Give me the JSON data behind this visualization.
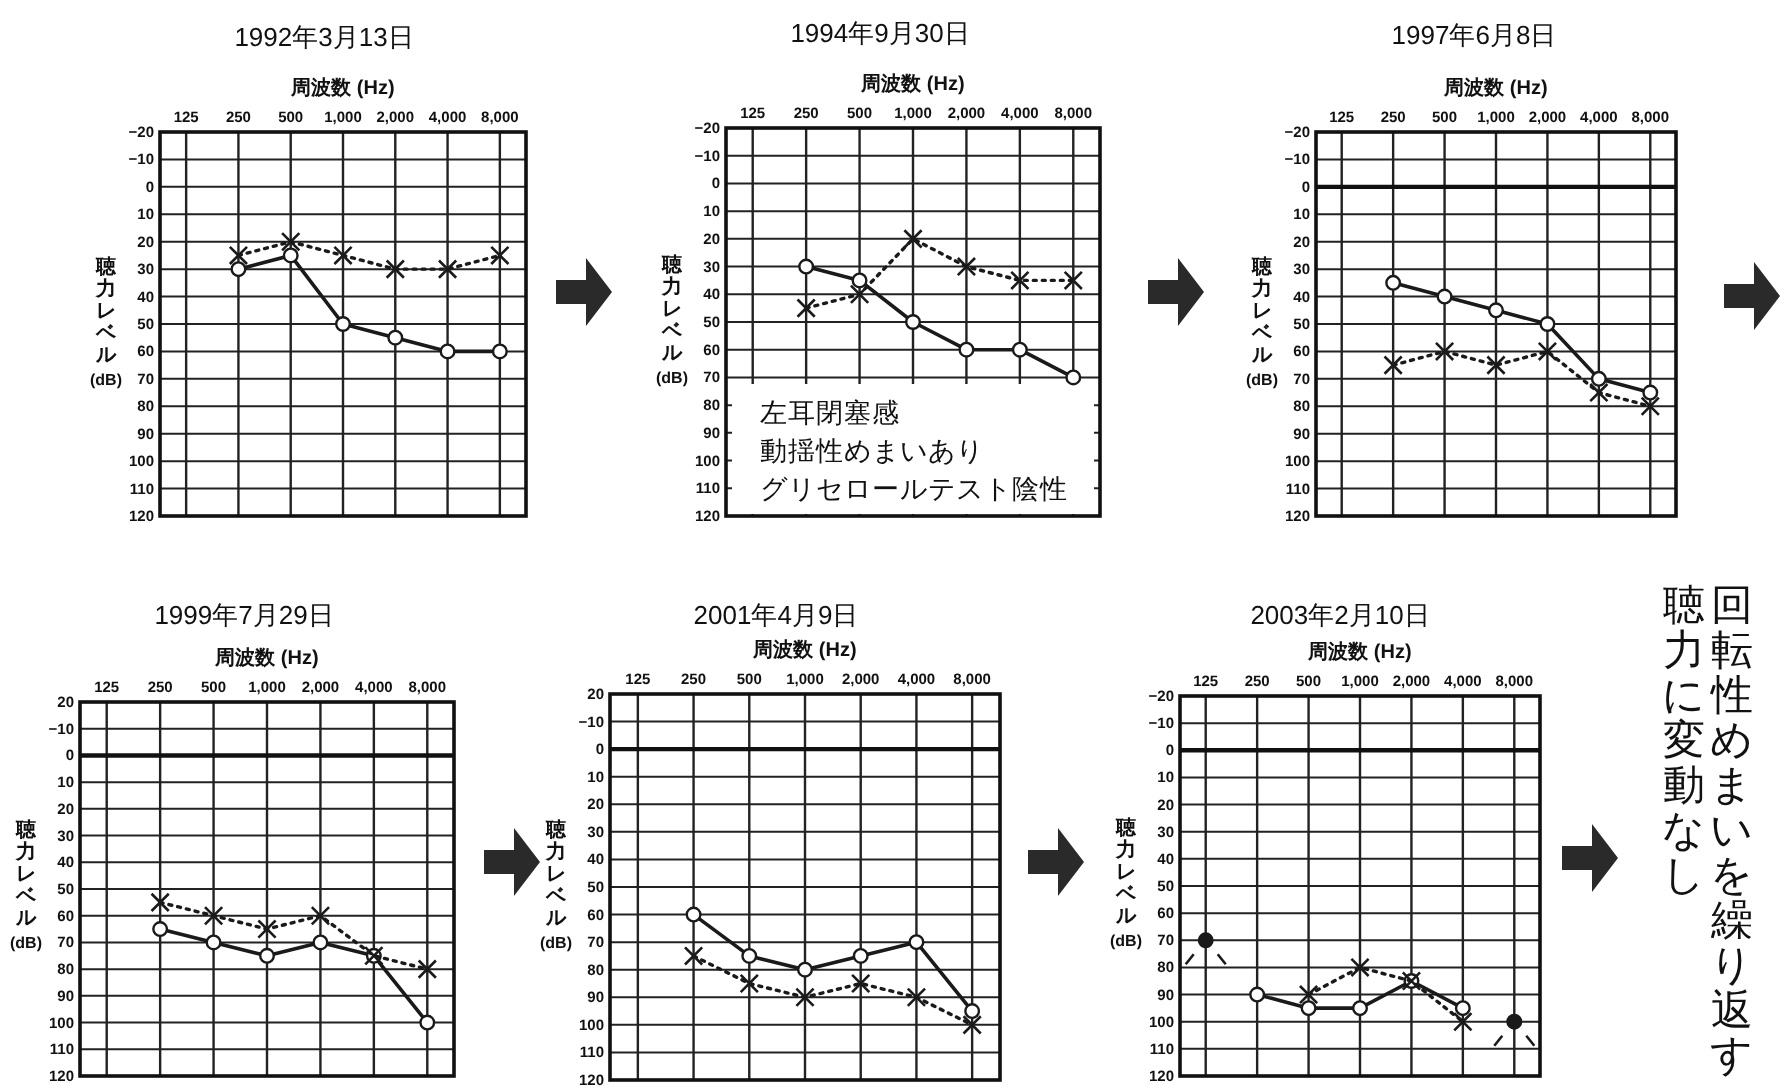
{
  "chart_data": [
    {
      "type": "line",
      "title": "1992年3月13日",
      "xlabel": "周波数 (Hz)",
      "ylabel": "聴力レベル (dB)",
      "categories": [
        "125",
        "250",
        "500",
        "1,000",
        "2,000",
        "4,000",
        "8,000"
      ],
      "ylim": [
        120,
        -20
      ],
      "yticks": [
        -20,
        -10,
        0,
        10,
        20,
        30,
        40,
        50,
        60,
        70,
        80,
        90,
        100,
        110,
        120
      ],
      "grid": true,
      "series": [
        {
          "color": "#1a1a1a",
          "marker": "circle",
          "line_style": "solid",
          "values": [
            null,
            30,
            25,
            50,
            55,
            60,
            60
          ]
        },
        {
          "color": "#1a1a1a",
          "marker": "cross",
          "line_style": "dotted",
          "values": [
            null,
            25,
            20,
            25,
            30,
            30,
            25
          ]
        }
      ]
    },
    {
      "type": "line",
      "title": "1994年9月30日",
      "xlabel": "周波数 (Hz)",
      "ylabel": "聴力レベル (dB)",
      "categories": [
        "125",
        "250",
        "500",
        "1,000",
        "2,000",
        "4,000",
        "8,000"
      ],
      "ylim": [
        120,
        -20
      ],
      "yticks": [
        -20,
        -10,
        0,
        10,
        20,
        30,
        40,
        50,
        60,
        70,
        80,
        90,
        100,
        110,
        120
      ],
      "grid": true,
      "series": [
        {
          "color": "#1a1a1a",
          "marker": "circle",
          "line_style": "solid",
          "values": [
            null,
            30,
            35,
            50,
            60,
            60,
            70
          ]
        },
        {
          "color": "#1a1a1a",
          "marker": "cross",
          "line_style": "dotted",
          "values": [
            null,
            45,
            40,
            20,
            30,
            35,
            35
          ]
        }
      ],
      "annotations": [
        "左耳閉塞感",
        "動揺性めまいあり",
        "グリセロールテスト陰性"
      ]
    },
    {
      "type": "line",
      "title": "1997年6月8日",
      "xlabel": "周波数 (Hz)",
      "ylabel": "聴力レベル (dB)",
      "categories": [
        "125",
        "250",
        "500",
        "1,000",
        "2,000",
        "4,000",
        "8,000"
      ],
      "ylim": [
        120,
        -20
      ],
      "yticks": [
        -20,
        -10,
        0,
        10,
        20,
        30,
        40,
        50,
        60,
        70,
        80,
        90,
        100,
        110,
        120
      ],
      "grid": true,
      "ref_lines": [
        {
          "axis": "y",
          "value": 0
        }
      ],
      "series": [
        {
          "color": "#1a1a1a",
          "marker": "circle",
          "line_style": "solid",
          "values": [
            null,
            35,
            40,
            45,
            50,
            70,
            75
          ]
        },
        {
          "color": "#1a1a1a",
          "marker": "cross",
          "line_style": "dotted",
          "values": [
            null,
            65,
            60,
            65,
            60,
            75,
            80
          ]
        }
      ]
    },
    {
      "type": "line",
      "title": "1999年7月29日",
      "xlabel": "周波数 (Hz)",
      "ylabel": "聴力レベル (dB)",
      "categories": [
        "125",
        "250",
        "500",
        "1,000",
        "2,000",
        "4,000",
        "8,000"
      ],
      "ylim": [
        120,
        -20
      ],
      "yticks": [
        {
          "value": -20,
          "label": "20"
        },
        -10,
        0,
        10,
        20,
        30,
        40,
        50,
        60,
        70,
        80,
        90,
        100,
        110,
        120
      ],
      "grid": true,
      "ref_lines": [
        {
          "axis": "y",
          "value": 0
        }
      ],
      "series": [
        {
          "color": "#1a1a1a",
          "marker": "circle",
          "line_style": "solid",
          "values": [
            null,
            65,
            70,
            75,
            70,
            75,
            100
          ]
        },
        {
          "color": "#1a1a1a",
          "marker": "cross",
          "line_style": "dotted",
          "values": [
            null,
            55,
            60,
            65,
            60,
            75,
            80
          ]
        }
      ]
    },
    {
      "type": "line",
      "title": "2001年4月9日",
      "xlabel": "周波数 (Hz)",
      "ylabel": "聴力レベル (dB)",
      "categories": [
        "125",
        "250",
        "500",
        "1,000",
        "2,000",
        "4,000",
        "8,000"
      ],
      "ylim": [
        120,
        -20
      ],
      "yticks": [
        {
          "value": -20,
          "label": "20"
        },
        -10,
        0,
        10,
        20,
        30,
        40,
        50,
        60,
        70,
        80,
        90,
        100,
        110,
        120
      ],
      "grid": true,
      "ref_lines": [
        {
          "axis": "y",
          "value": 0
        }
      ],
      "series": [
        {
          "color": "#1a1a1a",
          "marker": "circle",
          "line_style": "solid",
          "values": [
            null,
            60,
            75,
            80,
            75,
            70,
            95
          ]
        },
        {
          "color": "#1a1a1a",
          "marker": "cross",
          "line_style": "dotted",
          "values": [
            null,
            75,
            85,
            90,
            85,
            90,
            100
          ]
        }
      ]
    },
    {
      "type": "line",
      "title": "2003年2月10日",
      "xlabel": "周波数 (Hz)",
      "ylabel": "聴力レベル (dB)",
      "categories": [
        "125",
        "250",
        "500",
        "1,000",
        "2,000",
        "4,000",
        "8,000"
      ],
      "ylim": [
        120,
        -20
      ],
      "yticks": [
        -20,
        -10,
        0,
        10,
        20,
        30,
        40,
        50,
        60,
        70,
        80,
        90,
        100,
        110,
        120
      ],
      "grid": true,
      "ref_lines": [
        {
          "axis": "y",
          "value": 0
        }
      ],
      "series": [
        {
          "color": "#1a1a1a",
          "marker": "circle",
          "line_style": "solid",
          "values": [
            null,
            90,
            95,
            95,
            85,
            95,
            null
          ]
        },
        {
          "color": "#1a1a1a",
          "marker": "cross",
          "line_style": "dotted",
          "values": [
            null,
            null,
            90,
            80,
            85,
            100,
            null
          ]
        },
        {
          "type": "scatter",
          "color": "#1a1a1a",
          "marker": "circle",
          "values": [
            70,
            null,
            null,
            null,
            null,
            null,
            100
          ]
        }
      ]
    },
    {
      "type": "other",
      "annotations": [
        "回転性めまいを繰り返す",
        "聴力に変動なし"
      ]
    }
  ]
}
